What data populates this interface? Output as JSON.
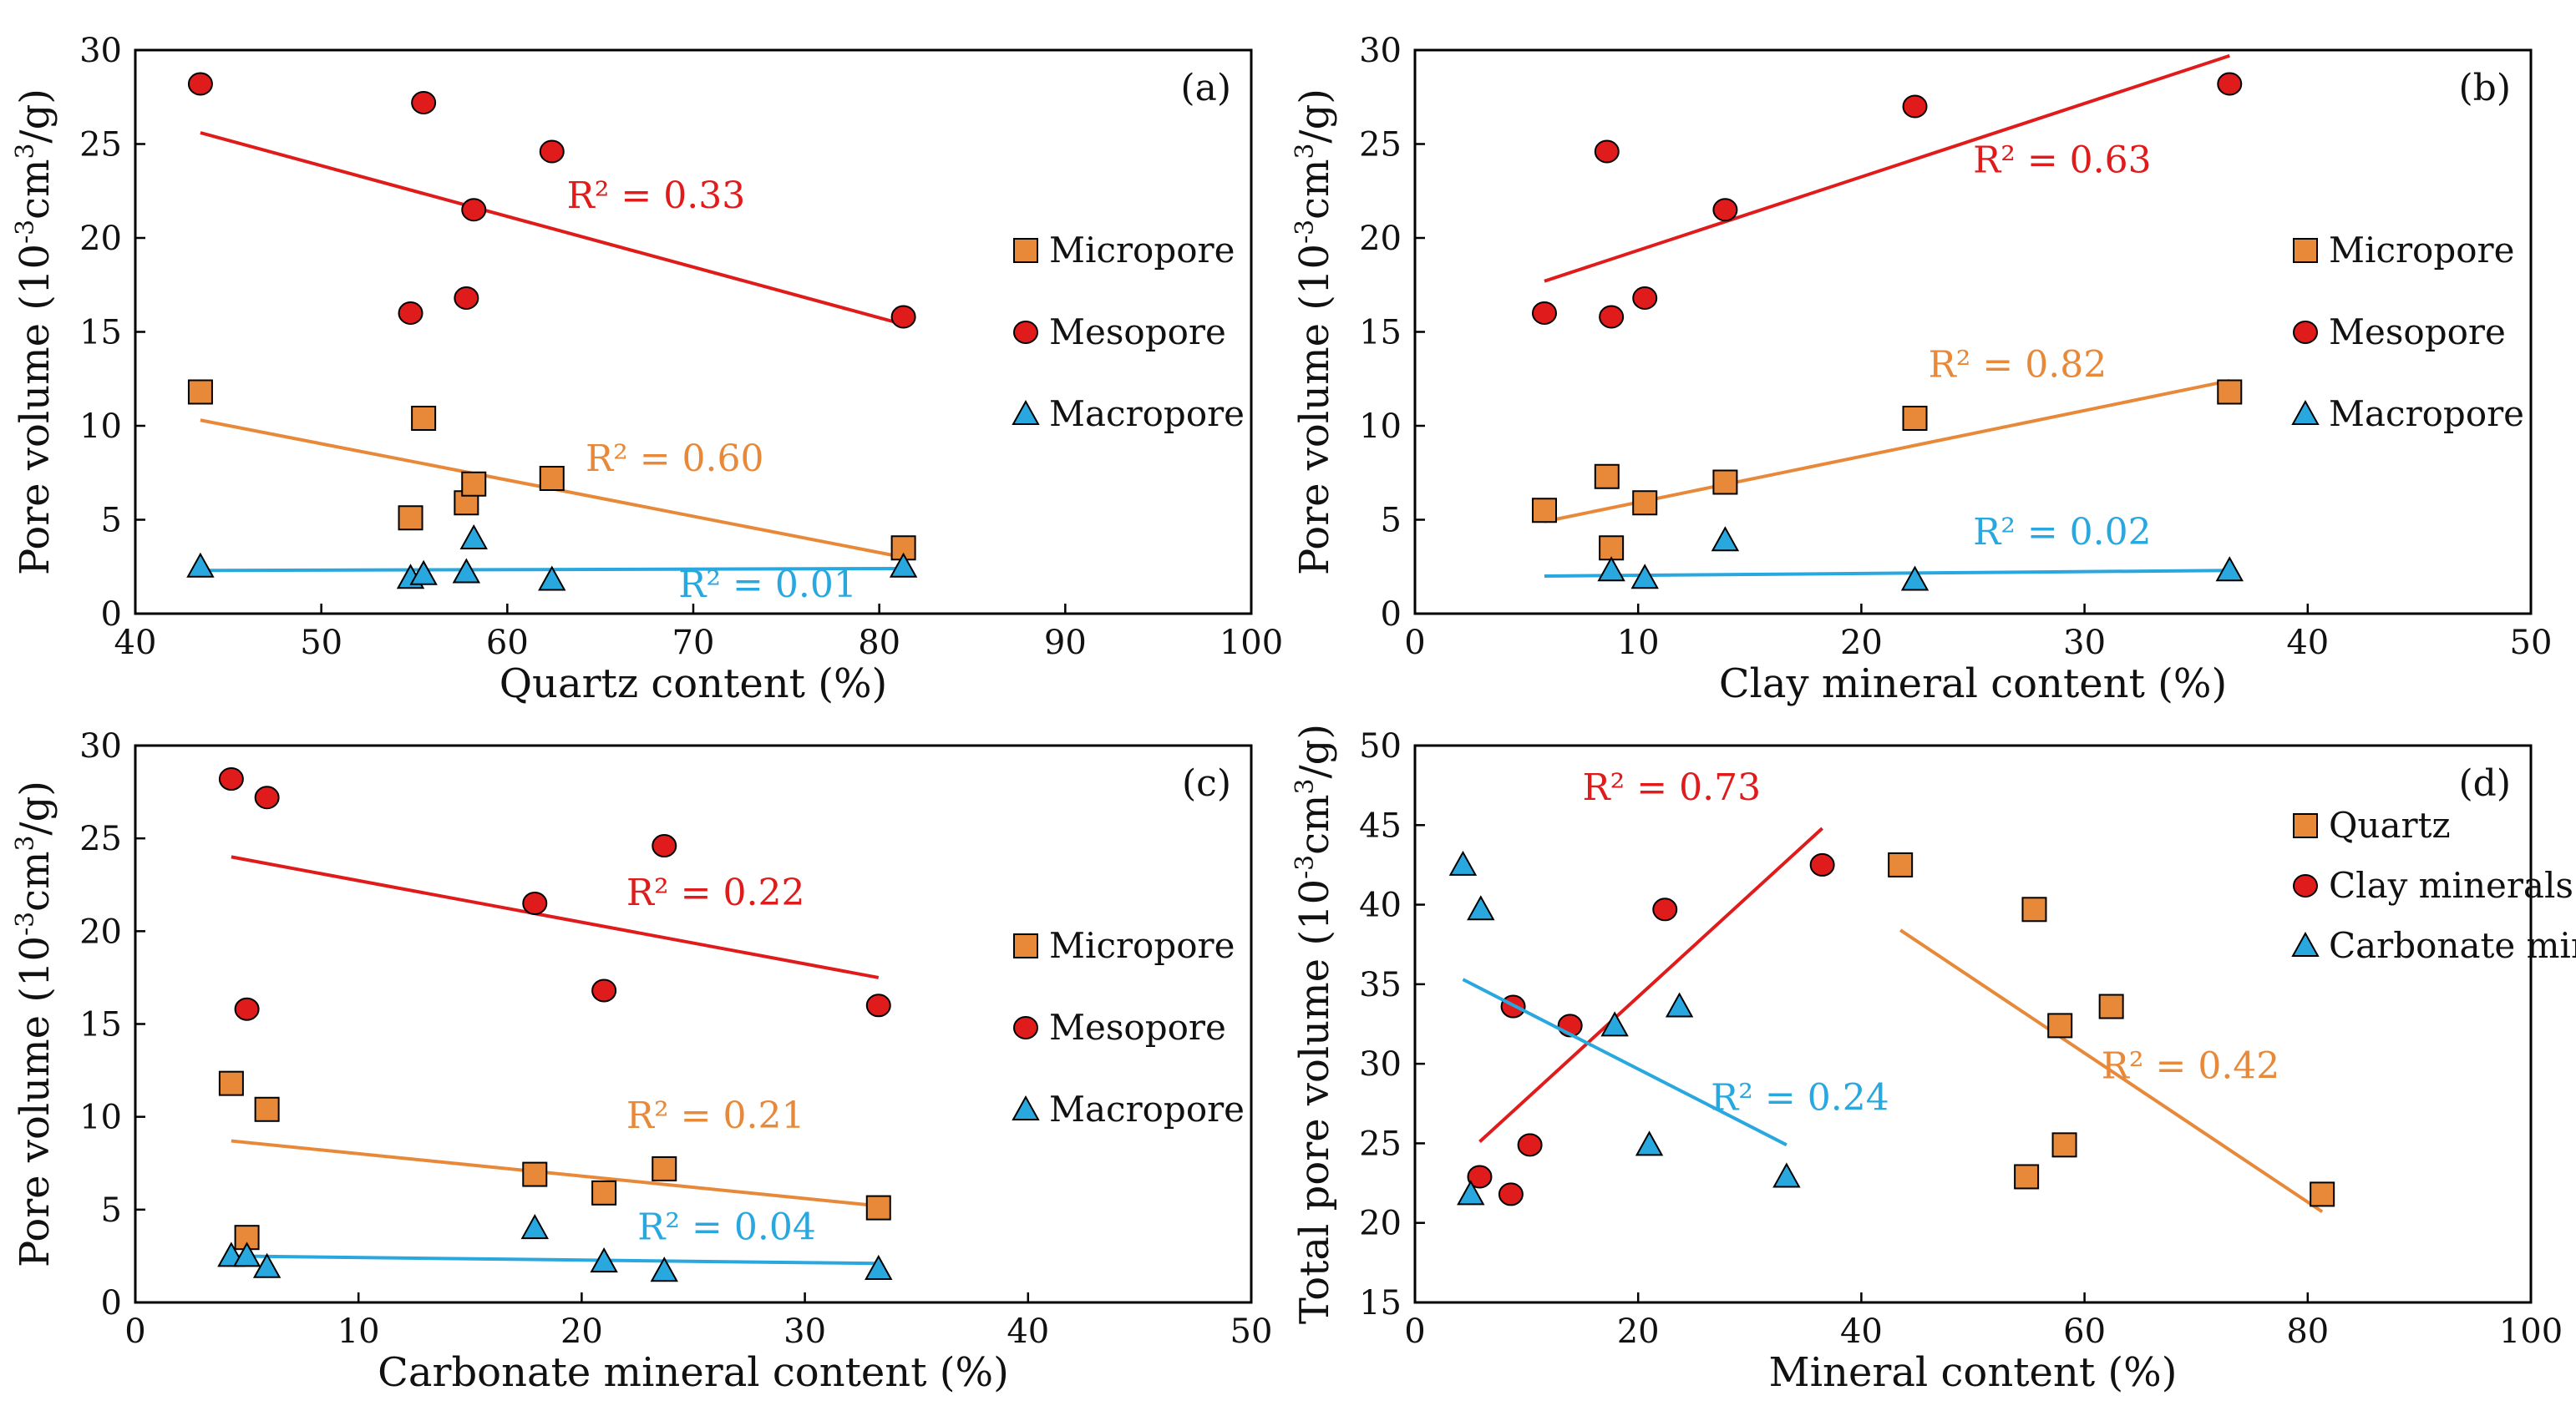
{
  "chart_data": [
    {
      "type": "scatter",
      "panel_label": "(a)",
      "xlabel": "Quartz content (%)",
      "ylabel": "Pore volume (10⁻³cm³/g)",
      "xlim": [
        40,
        100
      ],
      "ylim": [
        0,
        30
      ],
      "xticks": [
        40,
        50,
        60,
        70,
        80,
        90,
        100
      ],
      "yticks": [
        0,
        5,
        10,
        15,
        20,
        25,
        30
      ],
      "xtick_labels": [
        "40",
        "50",
        "60",
        "70",
        "80",
        "90",
        "100"
      ],
      "ytick_labels": [
        "0",
        "5",
        "10",
        "15",
        "20",
        "25",
        "30"
      ],
      "legend": [
        {
          "name": "Micropore",
          "marker": "square",
          "color": "#e8893a"
        },
        {
          "name": "Mesopore",
          "marker": "circle",
          "color": "#e01b1b"
        },
        {
          "name": "Macropore",
          "marker": "triangle",
          "color": "#29a8e0"
        }
      ],
      "series": [
        {
          "name": "Micropore",
          "marker": "square",
          "color": "#e8893a",
          "x": [
            43.5,
            54.8,
            55.5,
            57.8,
            58.2,
            62.4,
            81.3
          ],
          "y": [
            11.8,
            5.1,
            10.4,
            5.9,
            6.9,
            7.2,
            3.5
          ],
          "trend": {
            "x": [
              43.5,
              81.3
            ],
            "y": [
              10.3,
              3.0
            ]
          },
          "r2": "R² = 0.60",
          "r2_pos": [
            69,
            7.6
          ]
        },
        {
          "name": "Mesopore",
          "marker": "circle",
          "color": "#e01b1b",
          "x": [
            43.5,
            54.8,
            55.5,
            57.8,
            58.2,
            62.4,
            81.3
          ],
          "y": [
            28.2,
            16.0,
            27.2,
            16.8,
            21.5,
            24.6,
            15.8
          ],
          "trend": {
            "x": [
              43.5,
              81.3
            ],
            "y": [
              25.6,
              15.4
            ]
          },
          "r2": "R² = 0.33",
          "r2_pos": [
            68,
            21.6
          ]
        },
        {
          "name": "Macropore",
          "marker": "triangle",
          "color": "#29a8e0",
          "x": [
            43.5,
            54.8,
            55.5,
            57.8,
            58.2,
            62.4,
            81.3
          ],
          "y": [
            2.5,
            1.9,
            2.1,
            2.2,
            4.0,
            1.8,
            2.5
          ],
          "trend": {
            "x": [
              43.5,
              81.3
            ],
            "y": [
              2.3,
              2.4
            ]
          },
          "r2": "R² = 0.01",
          "r2_pos": [
            74,
            0.9
          ]
        }
      ]
    },
    {
      "type": "scatter",
      "panel_label": "(b)",
      "xlabel": "Clay mineral content (%)",
      "ylabel": "Pore volume (10⁻³cm³/g)",
      "xlim": [
        0,
        50
      ],
      "ylim": [
        0,
        30
      ],
      "xticks": [
        0,
        10,
        20,
        30,
        40,
        50
      ],
      "yticks": [
        0,
        5,
        10,
        15,
        20,
        25,
        30
      ],
      "xtick_labels": [
        "0",
        "10",
        "20",
        "30",
        "40",
        "50"
      ],
      "ytick_labels": [
        "0",
        "5",
        "10",
        "15",
        "20",
        "25",
        "30"
      ],
      "legend": [
        {
          "name": "Micropore",
          "marker": "square",
          "color": "#e8893a"
        },
        {
          "name": "Mesopore",
          "marker": "circle",
          "color": "#e01b1b"
        },
        {
          "name": "Macropore",
          "marker": "triangle",
          "color": "#29a8e0"
        }
      ],
      "series": [
        {
          "name": "Micropore",
          "marker": "square",
          "color": "#e8893a",
          "x": [
            5.8,
            8.6,
            8.8,
            10.3,
            13.9,
            22.4,
            36.5
          ],
          "y": [
            5.5,
            7.3,
            3.5,
            5.9,
            7.0,
            10.4,
            11.8
          ],
          "trend": {
            "x": [
              5.8,
              36.5
            ],
            "y": [
              4.9,
              12.4
            ]
          },
          "r2": "R² = 0.82",
          "r2_pos": [
            27,
            12.6
          ]
        },
        {
          "name": "Mesopore",
          "marker": "circle",
          "color": "#e01b1b",
          "x": [
            5.8,
            8.6,
            8.8,
            10.3,
            13.9,
            22.4,
            36.5
          ],
          "y": [
            16.0,
            24.6,
            15.8,
            16.8,
            21.5,
            27.0,
            28.2
          ],
          "trend": {
            "x": [
              5.8,
              36.5
            ],
            "y": [
              17.7,
              29.7
            ]
          },
          "r2": "R² = 0.63",
          "r2_pos": [
            29,
            23.5
          ]
        },
        {
          "name": "Macropore",
          "marker": "triangle",
          "color": "#29a8e0",
          "x": [
            8.8,
            10.3,
            13.9,
            22.4,
            36.5
          ],
          "y": [
            2.3,
            1.9,
            3.9,
            1.8,
            2.3
          ],
          "trend": {
            "x": [
              5.8,
              36.5
            ],
            "y": [
              2.0,
              2.3
            ]
          },
          "r2": "R² = 0.02",
          "r2_pos": [
            29,
            3.7
          ]
        }
      ]
    },
    {
      "type": "scatter",
      "panel_label": "(c)",
      "xlabel": "Carbonate mineral content (%)",
      "ylabel": "Pore volume (10⁻³cm³/g)",
      "xlim": [
        0,
        50
      ],
      "ylim": [
        0,
        30
      ],
      "xticks": [
        0,
        10,
        20,
        30,
        40,
        50
      ],
      "yticks": [
        0,
        5,
        10,
        15,
        20,
        25,
        30
      ],
      "xtick_labels": [
        "0",
        "10",
        "20",
        "30",
        "40",
        "50"
      ],
      "ytick_labels": [
        "0",
        "5",
        "10",
        "15",
        "20",
        "25",
        "30"
      ],
      "legend": [
        {
          "name": "Micropore",
          "marker": "square",
          "color": "#e8893a"
        },
        {
          "name": "Mesopore",
          "marker": "circle",
          "color": "#e01b1b"
        },
        {
          "name": "Macropore",
          "marker": "triangle",
          "color": "#29a8e0"
        }
      ],
      "series": [
        {
          "name": "Micropore",
          "marker": "square",
          "color": "#e8893a",
          "x": [
            4.3,
            5.0,
            5.9,
            17.9,
            21.0,
            23.7,
            33.3
          ],
          "y": [
            11.8,
            3.5,
            10.4,
            6.9,
            5.9,
            7.2,
            5.1
          ],
          "trend": {
            "x": [
              4.3,
              33.3
            ],
            "y": [
              8.7,
              5.2
            ]
          },
          "r2": "R² = 0.21",
          "r2_pos": [
            26,
            9.4
          ]
        },
        {
          "name": "Mesopore",
          "marker": "circle",
          "color": "#e01b1b",
          "x": [
            4.3,
            5.0,
            5.9,
            17.9,
            21.0,
            23.7,
            33.3
          ],
          "y": [
            28.2,
            15.8,
            27.2,
            21.5,
            16.8,
            24.6,
            16.0
          ],
          "trend": {
            "x": [
              4.3,
              33.3
            ],
            "y": [
              24.0,
              17.5
            ]
          },
          "r2": "R² = 0.22",
          "r2_pos": [
            26,
            21.4
          ]
        },
        {
          "name": "Macropore",
          "marker": "triangle",
          "color": "#29a8e0",
          "x": [
            4.3,
            5.0,
            5.9,
            17.9,
            21.0,
            23.7,
            33.3
          ],
          "y": [
            2.5,
            2.5,
            1.9,
            4.0,
            2.2,
            1.7,
            1.8
          ],
          "trend": {
            "x": [
              4.3,
              33.3
            ],
            "y": [
              2.5,
              2.1
            ]
          },
          "r2": "R² = 0.04",
          "r2_pos": [
            26.5,
            3.4
          ]
        }
      ]
    },
    {
      "type": "scatter",
      "panel_label": "(d)",
      "xlabel": "Mineral content (%)",
      "ylabel": "Total pore volume (10⁻³cm³/g)",
      "xlim": [
        0,
        100
      ],
      "ylim": [
        15,
        50
      ],
      "xticks": [
        0,
        20,
        40,
        60,
        80,
        100
      ],
      "yticks": [
        15,
        20,
        25,
        30,
        35,
        40,
        45,
        50
      ],
      "xtick_labels": [
        "0",
        "20",
        "40",
        "60",
        "80",
        "100"
      ],
      "ytick_labels": [
        "15",
        "20",
        "25",
        "30",
        "35",
        "40",
        "45",
        "50"
      ],
      "legend": [
        {
          "name": "Quartz",
          "marker": "square",
          "color": "#e8893a"
        },
        {
          "name": "Clay minerals",
          "marker": "circle",
          "color": "#e01b1b"
        },
        {
          "name": "Carbonate minerals",
          "marker": "triangle",
          "color": "#29a8e0"
        }
      ],
      "series": [
        {
          "name": "Quartz",
          "marker": "square",
          "color": "#e8893a",
          "x": [
            43.5,
            54.8,
            55.5,
            57.8,
            58.2,
            62.4,
            81.3
          ],
          "y": [
            42.5,
            22.9,
            39.7,
            32.4,
            24.9,
            33.6,
            21.8
          ],
          "trend": {
            "x": [
              43.5,
              81.3
            ],
            "y": [
              38.4,
              20.7
            ]
          },
          "r2": "R² = 0.42",
          "r2_pos": [
            69.5,
            29.1
          ]
        },
        {
          "name": "Clay minerals",
          "marker": "circle",
          "color": "#e01b1b",
          "x": [
            5.8,
            8.6,
            8.8,
            10.3,
            13.9,
            22.4,
            36.5
          ],
          "y": [
            22.9,
            21.8,
            33.6,
            24.9,
            32.4,
            39.7,
            42.5
          ],
          "trend": {
            "x": [
              5.8,
              36.5
            ],
            "y": [
              25.1,
              44.8
            ]
          },
          "r2": "R² = 0.73",
          "r2_pos": [
            23,
            46.6
          ]
        },
        {
          "name": "Carbonate minerals",
          "marker": "triangle",
          "color": "#29a8e0",
          "x": [
            4.3,
            5.0,
            5.9,
            17.9,
            21.0,
            23.7,
            33.3
          ],
          "y": [
            42.5,
            21.8,
            39.7,
            32.4,
            24.9,
            33.6,
            22.9
          ],
          "trend": {
            "x": [
              4.3,
              33.3
            ],
            "y": [
              35.3,
              24.9
            ]
          },
          "r2": "R² = 0.24",
          "r2_pos": [
            34.5,
            27.1
          ]
        }
      ]
    }
  ]
}
